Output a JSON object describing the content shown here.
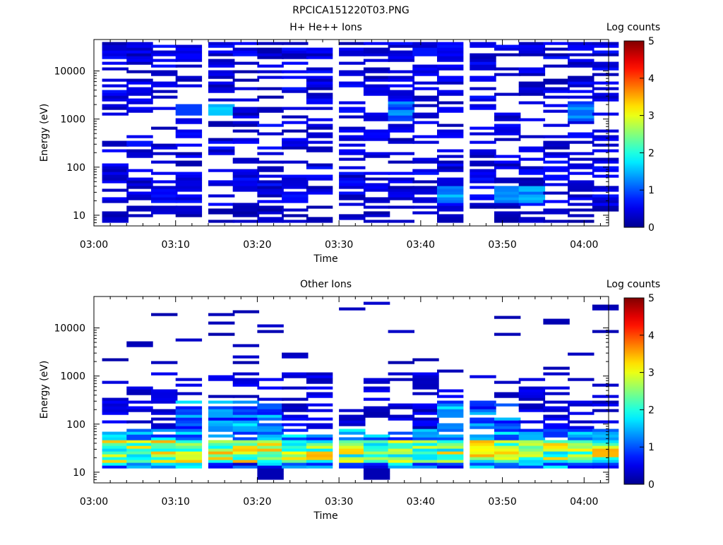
{
  "file_title": "RPCICA151220T03.PNG",
  "colorbar": {
    "label": "Log counts",
    "ticks": [
      0,
      1,
      2,
      3,
      4,
      5
    ],
    "range": [
      0,
      5
    ],
    "colormap": [
      "#00008f",
      "#0000ff",
      "#00ffff",
      "#ffff00",
      "#ff0000",
      "#800000"
    ]
  },
  "chart_data": [
    {
      "type": "heatmap",
      "title": "H+ He++ Ions",
      "xlabel": "Time",
      "ylabel": "Energy (eV)",
      "yscale": "log",
      "ylim": [
        6,
        45000
      ],
      "xlim": [
        "03:00",
        "04:03"
      ],
      "x_ticks": [
        "03:00",
        "03:10",
        "03:20",
        "03:30",
        "03:40",
        "03:50",
        "04:00"
      ],
      "y_ticks": [
        "10",
        "100",
        "1000",
        "10000"
      ],
      "time_bins_start": [
        "03:01",
        "03:04",
        "03:07",
        "03:10",
        "03:14",
        "03:17",
        "03:20",
        "03:23",
        "03:26",
        "03:30",
        "03:33",
        "03:36",
        "03:39",
        "03:42",
        "03:46",
        "03:49",
        "03:52",
        "03:55",
        "03:58",
        "04:01"
      ],
      "bin_minutes": 3.2,
      "description": "Sparse low-level counts across 10–40000 eV; peaks near 1–1.6 log counts around 1500 eV at 03:14 and near 25–30 eV at 03:40 and 03:52",
      "seed": 17
    },
    {
      "type": "heatmap",
      "title": "Other Ions",
      "xlabel": "Time",
      "ylabel": "Energy (eV)",
      "yscale": "log",
      "ylim": [
        6,
        45000
      ],
      "xlim": [
        "03:00",
        "04:03"
      ],
      "x_ticks": [
        "03:00",
        "03:10",
        "03:20",
        "03:30",
        "03:40",
        "03:50",
        "04:00"
      ],
      "y_ticks": [
        "10",
        "100",
        "1000",
        "10000"
      ],
      "time_bins_start": [
        "03:01",
        "03:04",
        "03:07",
        "03:10",
        "03:14",
        "03:17",
        "03:20",
        "03:23",
        "03:26",
        "03:30",
        "03:33",
        "03:36",
        "03:39",
        "03:42",
        "03:46",
        "03:49",
        "03:52",
        "03:55",
        "03:58",
        "04:01"
      ],
      "bin_minutes": 3.2,
      "description": "Strong band 12–40 eV reaching ~3.5 log counts; weaker sparse counts up to ~35000 eV",
      "seed": 41
    }
  ]
}
